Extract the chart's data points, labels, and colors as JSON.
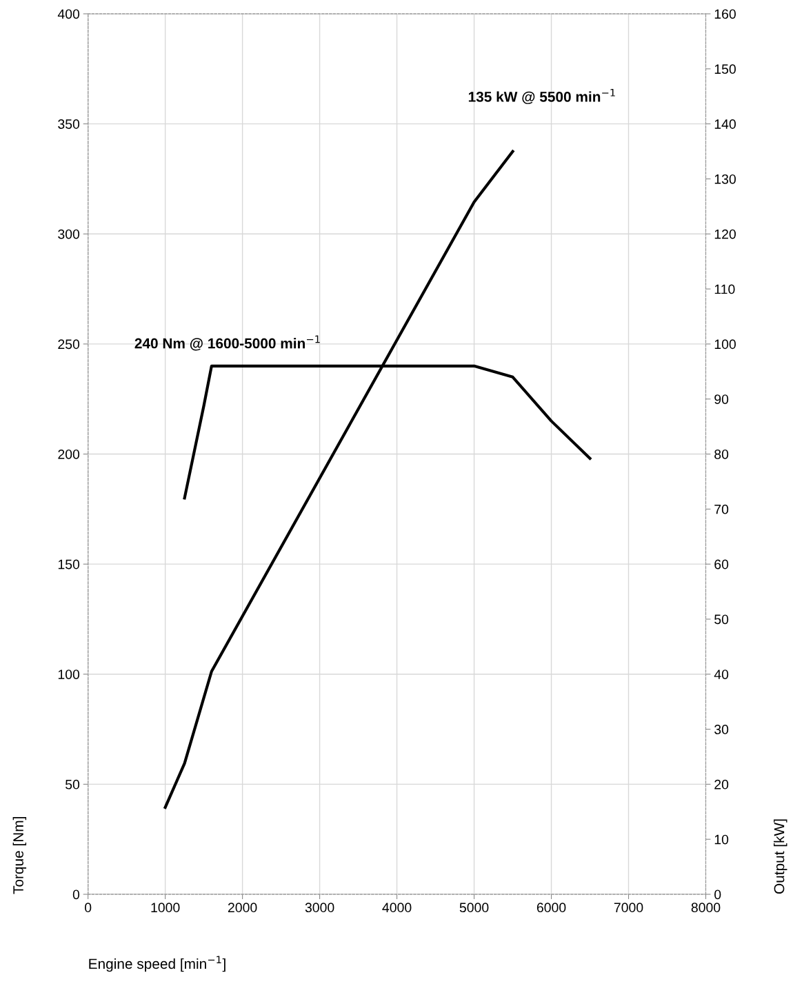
{
  "chart_data": {
    "type": "line",
    "xlabel": "Engine speed [min$^{−1}$]",
    "ylabel": "Torque [Nm]",
    "y2label": "Output [kW]",
    "annotations": [
      "240 Nm @ 1600-5000 min$^{−1}$",
      "135 kW @ 5500 min$^{−1}$"
    ],
    "series": [
      {
        "color": "#000000",
        "x": [
          1250,
          1500,
          1600,
          5000,
          5500,
          6000,
          6500
        ],
        "values": [
          180,
          222,
          240,
          240,
          235,
          215,
          198
        ]
      },
      {
        "color": "#000000",
        "axis": "y2",
        "x": [
          1000,
          1250,
          1600,
          5000,
          5500
        ],
        "values": [
          15.8,
          23.8,
          40.5,
          125.8,
          135
        ]
      }
    ],
    "xlim": [
      0,
      8000
    ],
    "xticks": [
      0,
      1000,
      2000,
      3000,
      4000,
      5000,
      6000,
      7000,
      8000
    ],
    "ylim": [
      0,
      400
    ],
    "yticks": [
      0,
      50,
      100,
      150,
      200,
      250,
      300,
      350,
      400
    ],
    "y2lim": [
      0,
      160
    ],
    "y2ticks": [
      0,
      10,
      20,
      30,
      40,
      50,
      60,
      70,
      80,
      90,
      100,
      110,
      120,
      130,
      140,
      150,
      160
    ],
    "grid": true,
    "legend": false,
    "marker": "none",
    "line_style": "solid"
  }
}
